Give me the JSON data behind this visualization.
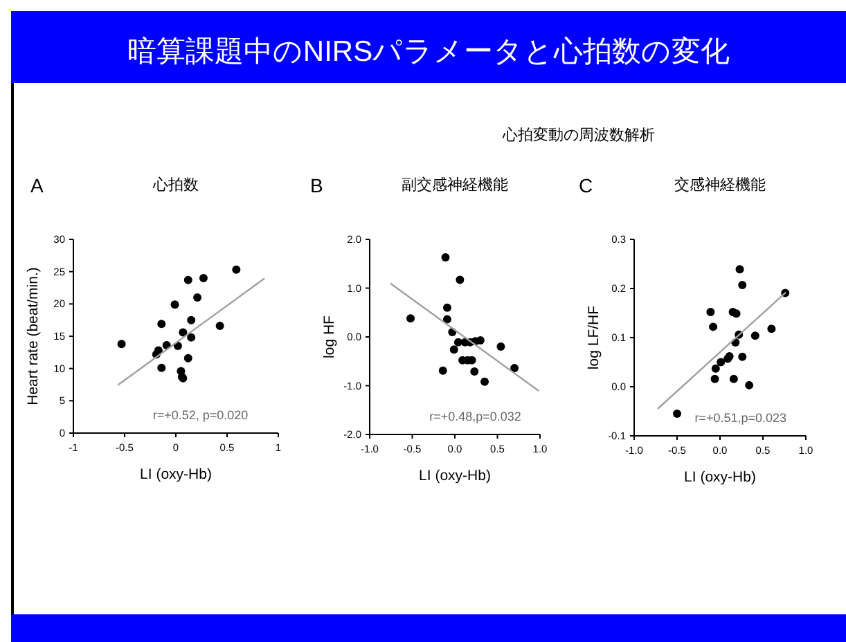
{
  "chart_data": [
    {
      "type": "other",
      "title": "暗算課題中のNIRSパラメータと心拍数の変化"
    },
    {
      "type": "scatter",
      "title": "心拍数",
      "xlabel": "LI (oxy-Hb)",
      "ylabel": "Heart rate (beat/min.)",
      "annotations": [
        "A",
        "r=+0.52, p=0.020"
      ],
      "xlim": [
        -1,
        1
      ],
      "ylim": [
        0,
        30
      ],
      "xticks": [
        -1,
        -0.5,
        0,
        0.5,
        1
      ],
      "yticks": [
        0,
        5,
        10,
        15,
        20,
        25,
        30
      ],
      "marker": "circle",
      "series": [
        {
          "type": "scatter",
          "color": "#000000",
          "x": [
            -0.53,
            0.12,
            0.27,
            0.59,
            -0.01,
            0.21,
            -0.14,
            0.15,
            0.43,
            0.07,
            0.15,
            0.02,
            -0.09,
            -0.17,
            -0.19,
            -0.14,
            0.12,
            0.05,
            0.06,
            0.07
          ],
          "values": [
            13.8,
            23.7,
            24.0,
            25.3,
            19.9,
            21.0,
            16.9,
            17.5,
            16.6,
            15.6,
            14.8,
            13.5,
            13.6,
            12.8,
            12.2,
            10.1,
            11.6,
            9.6,
            8.7,
            8.5
          ]
        },
        {
          "type": "line",
          "color": "#a0a0a0",
          "marker": "none",
          "x": [
            -0.56,
            0.86
          ],
          "values": [
            7.5,
            23.9
          ]
        }
      ]
    },
    {
      "type": "scatter",
      "title": "副交感神経機能",
      "subtitle": "心拍変動の周波数解析",
      "xlabel": "LI (oxy-Hb)",
      "ylabel": "log HF",
      "annotations": [
        "B",
        "r=+0.48,p=0.032"
      ],
      "xlim": [
        -1,
        1
      ],
      "ylim": [
        -2,
        2
      ],
      "xticks": [
        {
          "value": -1,
          "label": "-1.0"
        },
        {
          "value": -0.5,
          "label": "-0.5"
        },
        {
          "value": 0,
          "label": "0.0"
        },
        {
          "value": 0.5,
          "label": "0.5"
        },
        {
          "value": 1,
          "label": "1.0"
        }
      ],
      "yticks": [
        {
          "value": -2,
          "label": "-2.0"
        },
        {
          "value": -1,
          "label": "-1.0"
        },
        {
          "value": 0,
          "label": "0.0"
        },
        {
          "value": 1,
          "label": "1.0"
        },
        {
          "value": 2,
          "label": "2.0"
        }
      ],
      "marker": "circle",
      "series": [
        {
          "type": "scatter",
          "color": "#000000",
          "x": [
            -0.52,
            -0.11,
            0.06,
            -0.09,
            -0.09,
            -0.03,
            -0.01,
            -0.14,
            0.04,
            0.12,
            0.18,
            0.24,
            0.3,
            0.54,
            0.09,
            0.15,
            0.2,
            0.23,
            0.35,
            0.7
          ],
          "values": [
            0.38,
            1.63,
            1.17,
            0.6,
            0.36,
            0.1,
            -0.26,
            -0.69,
            -0.11,
            -0.11,
            -0.11,
            -0.09,
            -0.07,
            -0.2,
            -0.48,
            -0.48,
            -0.48,
            -0.71,
            -0.92,
            -0.64
          ]
        },
        {
          "type": "line",
          "color": "#a0a0a0",
          "marker": "none",
          "x": [
            -0.75,
            0.98
          ],
          "values": [
            1.09,
            -1.1
          ]
        }
      ]
    },
    {
      "type": "scatter",
      "title": "交感神経機能",
      "xlabel": "LI (oxy-Hb)",
      "ylabel": "log LF/HF",
      "annotations": [
        "C",
        "r=+0.51,p=0.023"
      ],
      "xlim": [
        -1,
        1
      ],
      "ylim": [
        -0.1,
        0.3
      ],
      "xticks": [
        {
          "value": -1,
          "label": "-1.0"
        },
        {
          "value": -0.5,
          "label": "-0.5"
        },
        {
          "value": 0,
          "label": "0.0"
        },
        {
          "value": 0.5,
          "label": "0.5"
        },
        {
          "value": 1,
          "label": "1.0"
        }
      ],
      "yticks": [
        -0.1,
        {
          "value": 0,
          "label": "0.0"
        },
        0.1,
        0.2,
        0.3
      ],
      "marker": "circle",
      "series": [
        {
          "type": "scatter",
          "color": "#000000",
          "x": [
            -0.5,
            0.23,
            0.26,
            -0.11,
            -0.08,
            0.15,
            0.19,
            0.22,
            0.18,
            0.41,
            0.6,
            0.76,
            -0.05,
            -0.06,
            0.01,
            0.09,
            0.11,
            0.26,
            0.16,
            0.34
          ],
          "values": [
            -0.055,
            0.239,
            0.207,
            0.152,
            0.122,
            0.152,
            0.149,
            0.106,
            0.09,
            0.104,
            0.118,
            0.191,
            0.037,
            0.016,
            0.05,
            0.057,
            0.062,
            0.061,
            0.016,
            0.003
          ]
        },
        {
          "type": "line",
          "color": "#a0a0a0",
          "marker": "none",
          "x": [
            -0.72,
            0.76
          ],
          "values": [
            -0.044,
            0.191
          ]
        }
      ]
    }
  ]
}
